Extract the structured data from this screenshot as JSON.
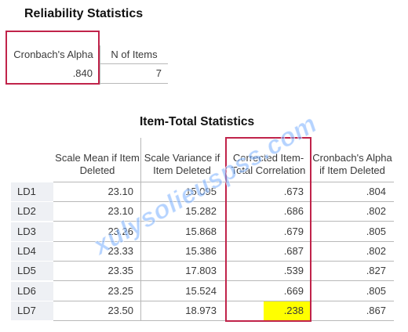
{
  "reliability": {
    "title": "Reliability Statistics",
    "headers": [
      "Cronbach's Alpha",
      "N of Items"
    ],
    "values": [
      ".840",
      "7"
    ]
  },
  "item_total": {
    "title": "Item-Total Statistics",
    "headers": [
      "Scale Mean if Item Deleted",
      "Scale Variance if Item Deleted",
      "Corrected Item-Total Correlation",
      "Cronbach's Alpha if Item Deleted"
    ],
    "rows": [
      {
        "label": "LD1",
        "mean": "23.10",
        "variance": "15.095",
        "corr": ".673",
        "alpha": ".804"
      },
      {
        "label": "LD2",
        "mean": "23.10",
        "variance": "15.282",
        "corr": ".686",
        "alpha": ".802"
      },
      {
        "label": "LD3",
        "mean": "23.26",
        "variance": "15.868",
        "corr": ".679",
        "alpha": ".805"
      },
      {
        "label": "LD4",
        "mean": "23.33",
        "variance": "15.386",
        "corr": ".687",
        "alpha": ".802"
      },
      {
        "label": "LD5",
        "mean": "23.35",
        "variance": "17.803",
        "corr": ".539",
        "alpha": ".827"
      },
      {
        "label": "LD6",
        "mean": "23.25",
        "variance": "15.524",
        "corr": ".669",
        "alpha": ".805"
      },
      {
        "label": "LD7",
        "mean": "23.50",
        "variance": "18.973",
        "corr": ".238",
        "alpha": ".867"
      }
    ]
  },
  "highlight_colors": {
    "box": "#c0234a",
    "cell": "#ffff00"
  },
  "watermark": "xulysolieuspss.com"
}
